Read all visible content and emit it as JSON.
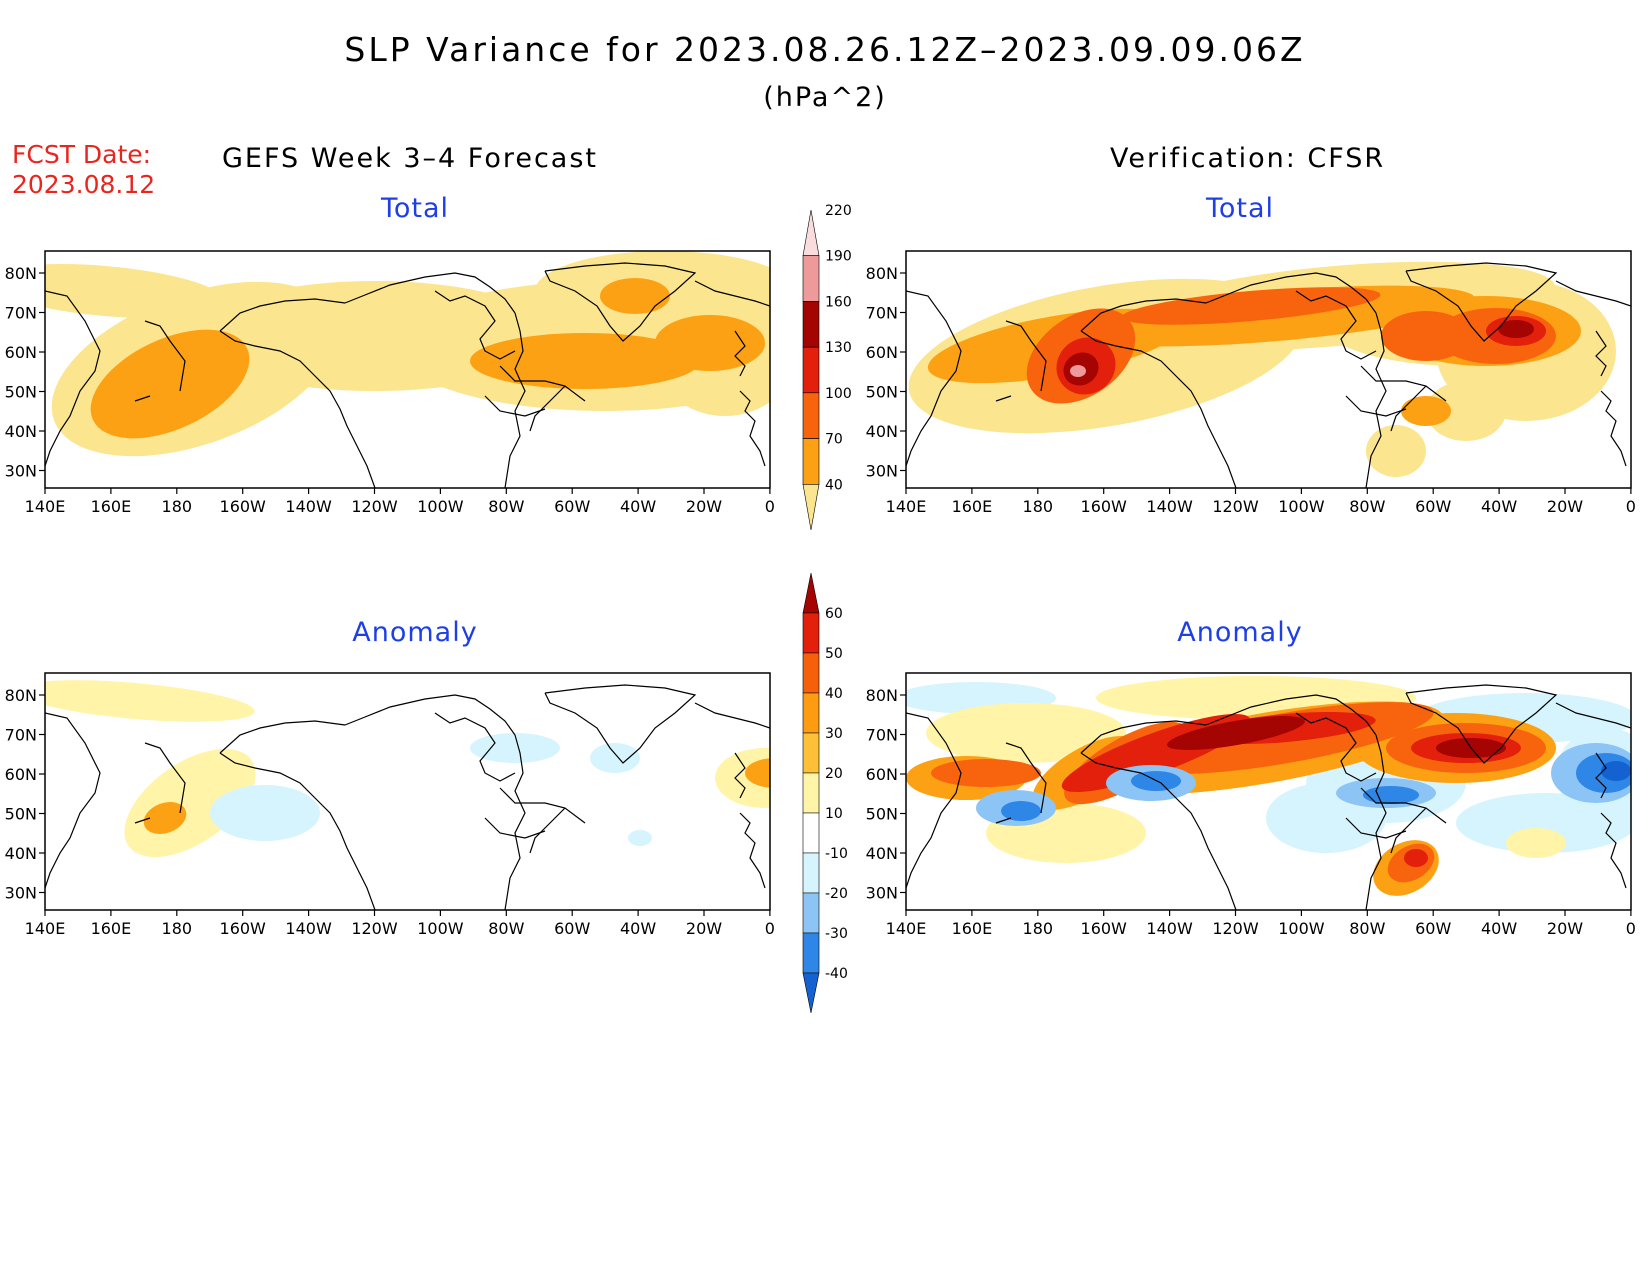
{
  "header": {
    "title": "SLP Variance for 2023.08.26.12Z–2023.09.09.06Z",
    "units": "(hPa^2)",
    "fcst_label": "FCST Date:",
    "fcst_date": "2023.08.12",
    "left_heading": "GEFS Week 3–4 Forecast",
    "right_heading": "Verification: CFSR"
  },
  "panels": [
    {
      "id": "forecast-total",
      "title": "Total"
    },
    {
      "id": "verification-total",
      "title": "Total"
    },
    {
      "id": "forecast-anomaly",
      "title": "Anomaly"
    },
    {
      "id": "verification-anomaly",
      "title": "Anomaly"
    }
  ],
  "axes": {
    "lat_labels": [
      "80N",
      "70N",
      "60N",
      "50N",
      "40N",
      "30N"
    ],
    "lon_labels": [
      "140E",
      "160E",
      "180",
      "160W",
      "140W",
      "120W",
      "100W",
      "80W",
      "60W",
      "40W",
      "20W",
      "0"
    ]
  },
  "colorbars": {
    "total": {
      "levels": [
        "40",
        "70",
        "100",
        "130",
        "160",
        "190",
        "220"
      ],
      "colors": [
        "#fbe58e",
        "#fda114",
        "#f8640e",
        "#e2200c",
        "#a40402",
        "#ef9a9a",
        "#fbdcdc"
      ]
    },
    "anomaly": {
      "levels": [
        "-40",
        "-30",
        "-20",
        "-10",
        "10",
        "20",
        "30",
        "40",
        "50",
        "60"
      ],
      "colors": [
        "#1462d2",
        "#2e87e6",
        "#8cc4f6",
        "#d6f4fe",
        "#ffffff",
        "#fff4a8",
        "#fdc038",
        "#fd9c10",
        "#f7600a",
        "#e2200c",
        "#a40402"
      ]
    }
  },
  "map_fields": {
    "colors": {
      "yellow": "#fbe58e",
      "orange": "#fda114",
      "dark_orange": "#f8640e",
      "red": "#e2200c",
      "dark_red": "#a40402",
      "pink": "#ef9a9a",
      "light_yellow": "#fff4a8",
      "light_blue": "#d6f4fe",
      "mid_blue": "#8cc4f6",
      "blue": "#2e87e6",
      "deep_blue": "#1462d2",
      "coast": "#000000"
    }
  }
}
